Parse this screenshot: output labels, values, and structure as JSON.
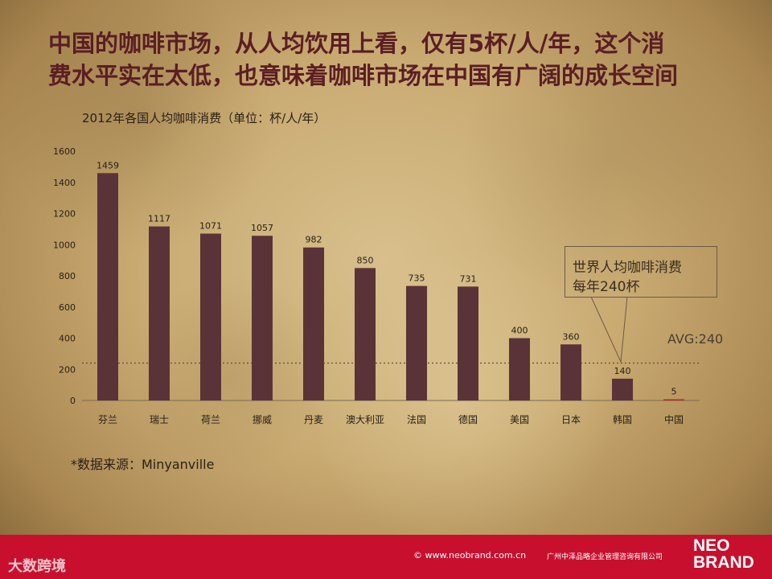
{
  "headline": {
    "line1": "中国的咖啡市场，从人均饮用上看，仅有5杯/人/年，这个消",
    "line2": "费水平实在太低，也意味着咖啡市场在中国有广阔的成长空间"
  },
  "chart_data": {
    "type": "bar",
    "title": "2012年各国人均咖啡消费（单位：杯/人/年）",
    "categories": [
      "芬兰",
      "瑞士",
      "荷兰",
      "挪威",
      "丹麦",
      "澳大利亚",
      "法国",
      "德国",
      "美国",
      "日本",
      "韩国",
      "中国"
    ],
    "values": [
      1459,
      1117,
      1071,
      1057,
      982,
      850,
      735,
      731,
      400,
      360,
      140,
      5
    ],
    "data_labels": [
      "1459",
      "1117",
      "1071",
      "1057",
      "982",
      "850",
      "735",
      "731",
      "400",
      "360",
      "140",
      "5"
    ],
    "ylim": [
      0,
      1600
    ],
    "yticks": [
      "0",
      "200",
      "400",
      "600",
      "800",
      "1000",
      "1200",
      "1400",
      "1600"
    ],
    "reference_line": {
      "value": 240,
      "label": "AVG:240",
      "style": "dotted"
    },
    "bar_color": "#5a3338",
    "highlight_color": "#b0282c",
    "highlight_category": "中国",
    "grid": false,
    "legend": "none"
  },
  "callout": {
    "line1": "世界人均咖啡消费",
    "line2": "每年240杯"
  },
  "source_note": "*数据来源：Minyanville",
  "footer": {
    "left_logo": "大数跨境",
    "site": "© www.neobrand.com.cn",
    "company": "广州中泽品略企业管理咨询有限公司",
    "brand_line1": "NEO",
    "brand_line2": "BRAND",
    "color": "#c8102e"
  }
}
